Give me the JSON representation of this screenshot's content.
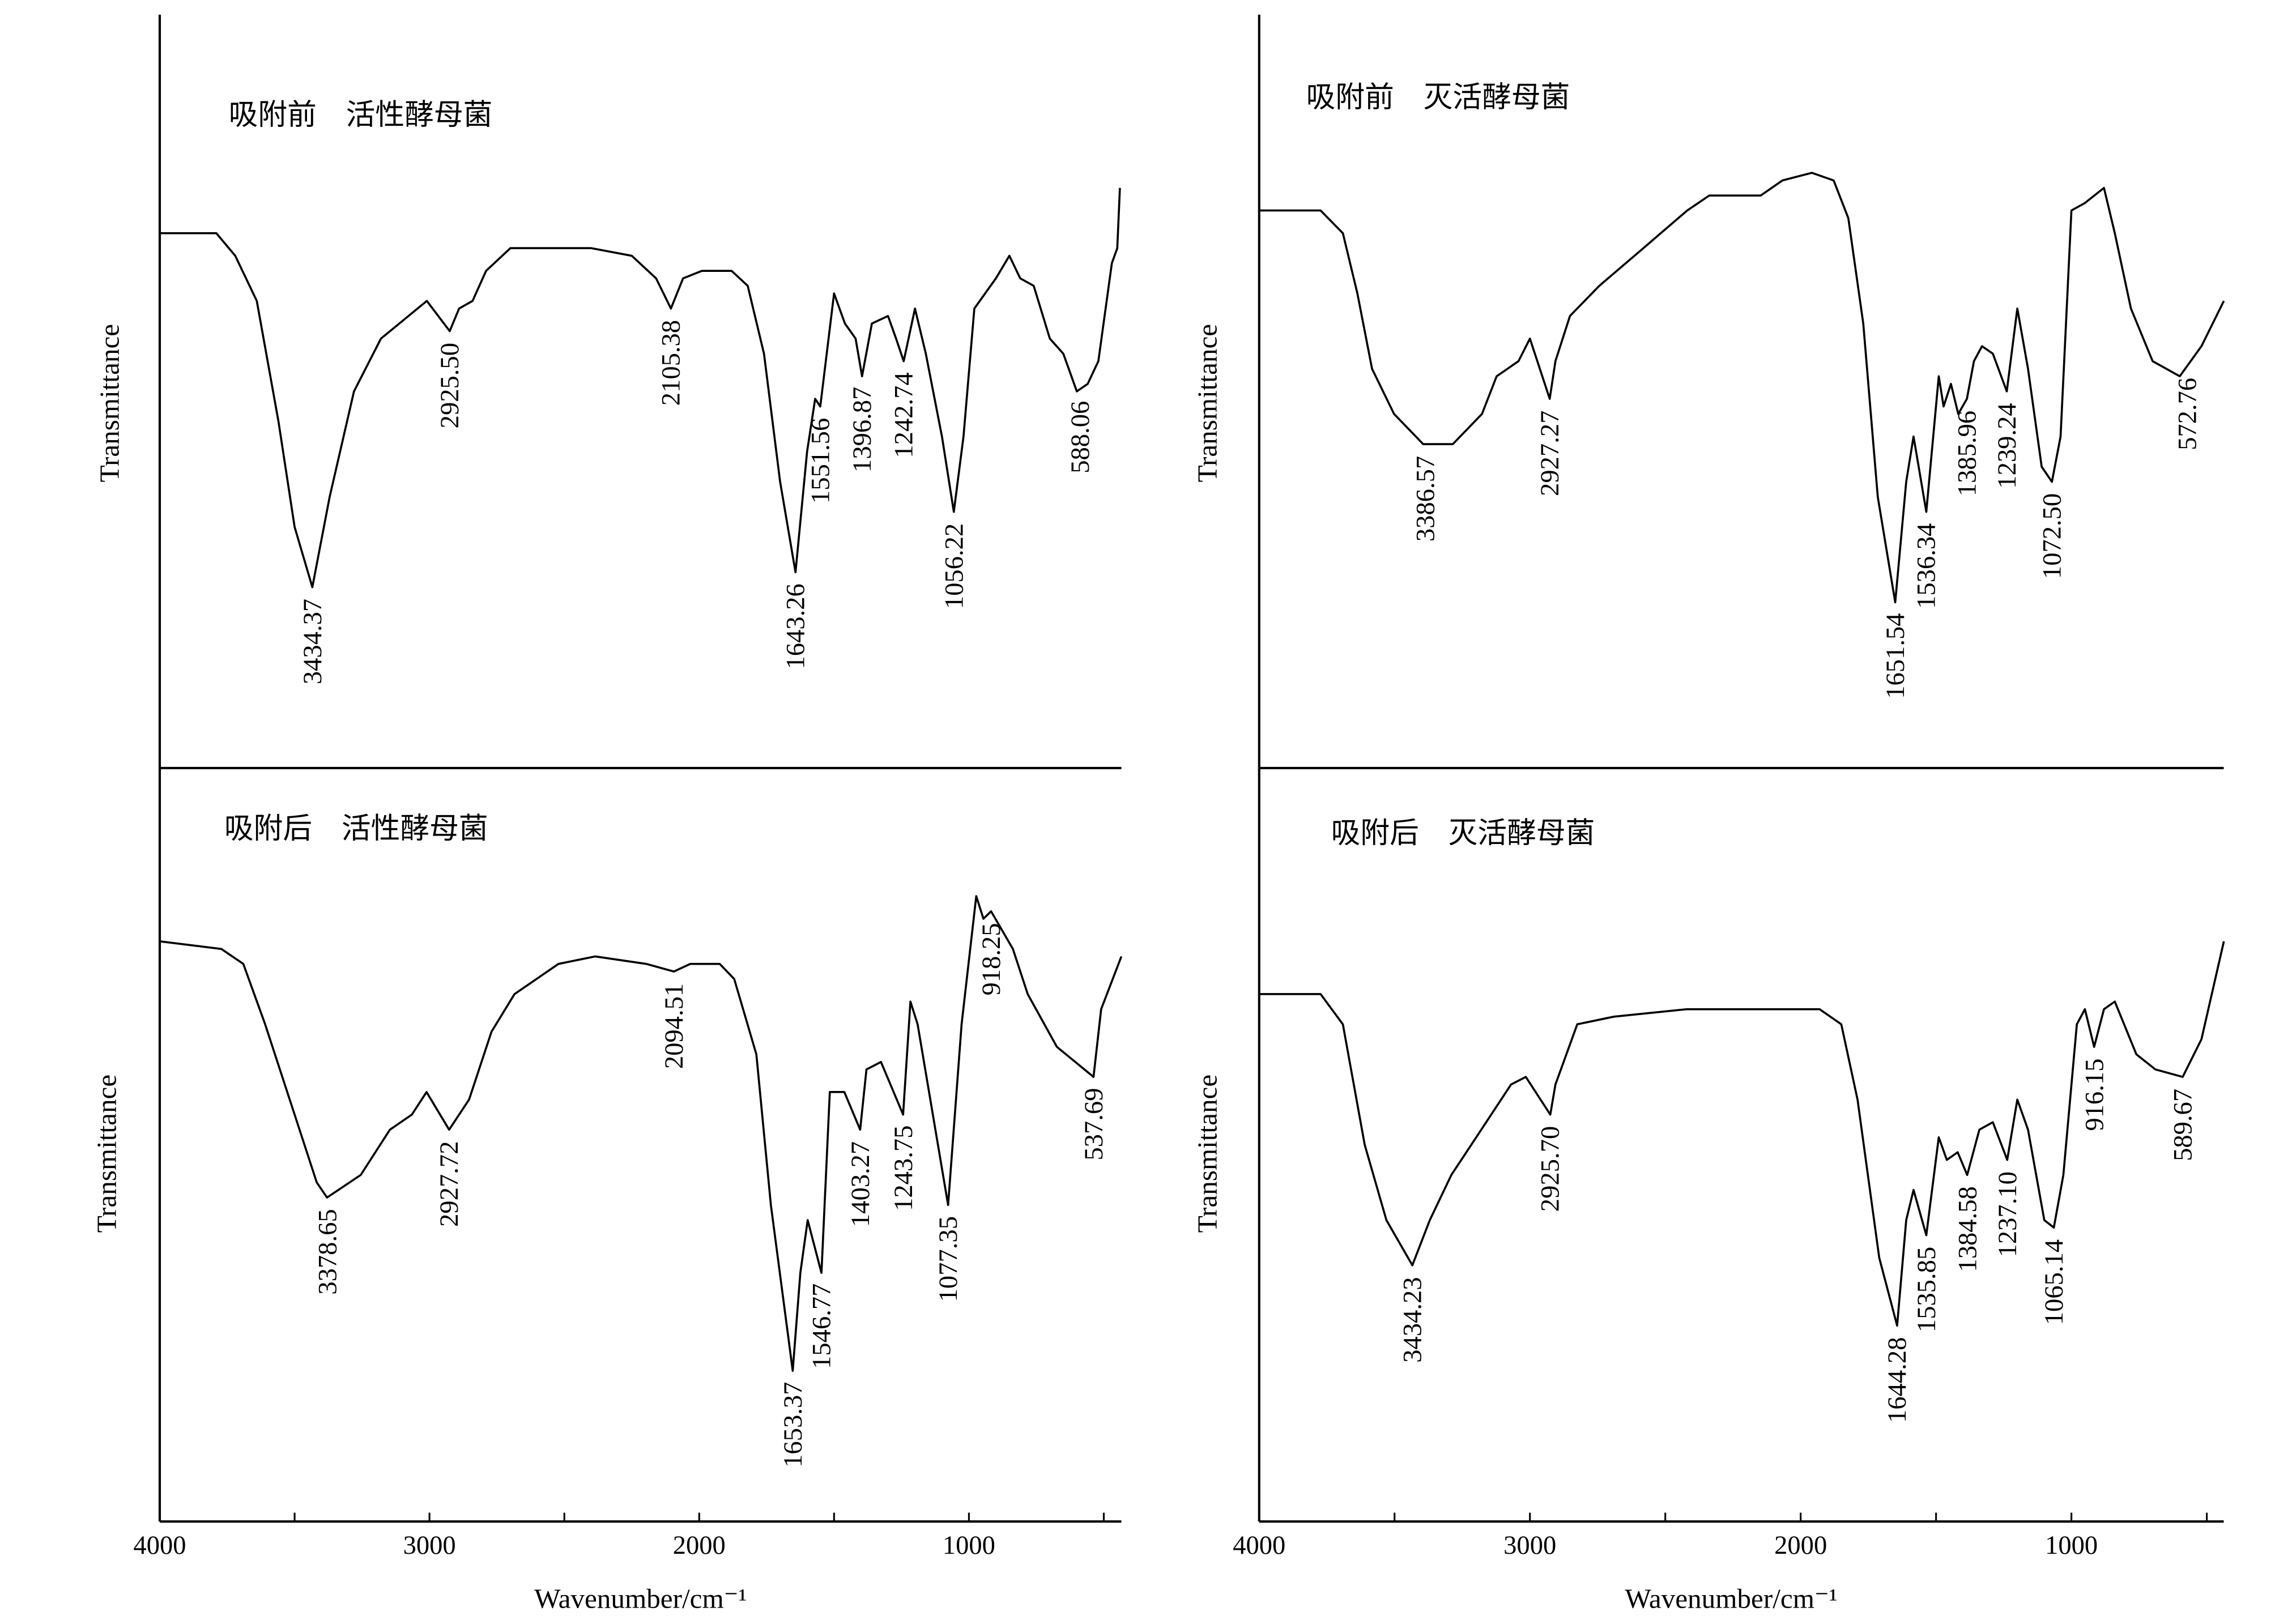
{
  "chart_data": {
    "type": "line",
    "xlabel": "Wavenumber/cm⁻¹",
    "ylabel": "Transmittance",
    "xlim": [
      4000,
      430
    ],
    "x_ticks": [
      "4000",
      "3000",
      "2000",
      "1000"
    ],
    "grid": false,
    "color": "#000000",
    "panels": [
      {
        "title": "吸附前　活性酵母菌",
        "ylabel": "Transmittance",
        "series": [
          [
            4000,
            71
          ],
          [
            3790,
            71
          ],
          [
            3720,
            68
          ],
          [
            3640,
            62
          ],
          [
            3560,
            46
          ],
          [
            3500,
            32
          ],
          [
            3434,
            24
          ],
          [
            3370,
            36
          ],
          [
            3280,
            50
          ],
          [
            3180,
            57
          ],
          [
            3010,
            62
          ],
          [
            2925,
            58
          ],
          [
            2890,
            61
          ],
          [
            2840,
            62
          ],
          [
            2790,
            66
          ],
          [
            2700,
            69
          ],
          [
            2400,
            69
          ],
          [
            2250,
            68
          ],
          [
            2160,
            65
          ],
          [
            2105,
            61
          ],
          [
            2060,
            65
          ],
          [
            1990,
            66
          ],
          [
            1880,
            66
          ],
          [
            1820,
            64
          ],
          [
            1760,
            55
          ],
          [
            1700,
            38
          ],
          [
            1643,
            26
          ],
          [
            1600,
            42
          ],
          [
            1570,
            49
          ],
          [
            1551,
            48
          ],
          [
            1500,
            63
          ],
          [
            1460,
            59
          ],
          [
            1420,
            57
          ],
          [
            1396,
            52
          ],
          [
            1360,
            59
          ],
          [
            1300,
            60
          ],
          [
            1270,
            57
          ],
          [
            1242,
            54
          ],
          [
            1200,
            61
          ],
          [
            1160,
            55
          ],
          [
            1100,
            44
          ],
          [
            1056,
            34
          ],
          [
            1020,
            44
          ],
          [
            980,
            61
          ],
          [
            900,
            65
          ],
          [
            850,
            68
          ],
          [
            810,
            65
          ],
          [
            760,
            64
          ],
          [
            700,
            57
          ],
          [
            650,
            55
          ],
          [
            600,
            50
          ],
          [
            560,
            51
          ],
          [
            520,
            54
          ],
          [
            470,
            67
          ],
          [
            450,
            69
          ],
          [
            440,
            77
          ]
        ],
        "peaks": [
          {
            "wn": 3434.37,
            "label": "3434.37"
          },
          {
            "wn": 2925.5,
            "label": "2925.50"
          },
          {
            "wn": 2105.38,
            "label": "2105.38"
          },
          {
            "wn": 1643.26,
            "label": "1643.26"
          },
          {
            "wn": 1551.56,
            "label": "1551.56"
          },
          {
            "wn": 1396.87,
            "label": "1396.87"
          },
          {
            "wn": 1242.74,
            "label": "1242.74"
          },
          {
            "wn": 1056.22,
            "label": "1056.22"
          },
          {
            "wn": 588.06,
            "label": "588.06"
          }
        ]
      },
      {
        "title": "吸附前　灭活酵母菌",
        "ylabel": "Transmittance",
        "series": [
          [
            4000,
            74
          ],
          [
            3773,
            74
          ],
          [
            3691,
            71
          ],
          [
            3637,
            63
          ],
          [
            3583,
            53
          ],
          [
            3502,
            47
          ],
          [
            3394,
            43
          ],
          [
            3285,
            43
          ],
          [
            3177,
            47
          ],
          [
            3123,
            52
          ],
          [
            3042,
            54
          ],
          [
            3000,
            57
          ],
          [
            2927,
            49
          ],
          [
            2906,
            54
          ],
          [
            2852,
            60
          ],
          [
            2744,
            64
          ],
          [
            2581,
            69
          ],
          [
            2419,
            74
          ],
          [
            2338,
            76
          ],
          [
            2148,
            76
          ],
          [
            2067,
            78
          ],
          [
            1959,
            79
          ],
          [
            1878,
            78
          ],
          [
            1824,
            73
          ],
          [
            1769,
            59
          ],
          [
            1715,
            36
          ],
          [
            1651,
            22
          ],
          [
            1610,
            38
          ],
          [
            1583,
            44
          ],
          [
            1536,
            34
          ],
          [
            1490,
            52
          ],
          [
            1472,
            48
          ],
          [
            1445,
            51
          ],
          [
            1418,
            47
          ],
          [
            1386,
            49
          ],
          [
            1360,
            54
          ],
          [
            1330,
            56
          ],
          [
            1290,
            55
          ],
          [
            1239,
            50
          ],
          [
            1200,
            61
          ],
          [
            1160,
            53
          ],
          [
            1110,
            40
          ],
          [
            1072,
            38
          ],
          [
            1040,
            44
          ],
          [
            1000,
            74
          ],
          [
            950,
            75
          ],
          [
            880,
            77
          ],
          [
            840,
            71
          ],
          [
            780,
            61
          ],
          [
            700,
            54
          ],
          [
            600,
            52
          ],
          [
            520,
            56
          ],
          [
            437,
            62
          ]
        ],
        "peaks": [
          {
            "wn": 3386.57,
            "label": "3386.57"
          },
          {
            "wn": 2927.27,
            "label": "2927.27"
          },
          {
            "wn": 1651.54,
            "label": "1651.54"
          },
          {
            "wn": 1536.34,
            "label": "1536.34"
          },
          {
            "wn": 1385.96,
            "label": "1385.96"
          },
          {
            "wn": 1239.24,
            "label": "1239.24"
          },
          {
            "wn": 1072.5,
            "label": "1072.50"
          },
          {
            "wn": 572.76,
            "label": "572.76"
          }
        ]
      },
      {
        "title": "吸附后　活性酵母菌",
        "ylabel": "Transmittance",
        "series": [
          [
            4000,
            77
          ],
          [
            3772,
            76
          ],
          [
            3690,
            74
          ],
          [
            3609,
            66
          ],
          [
            3500,
            54
          ],
          [
            3418,
            45
          ],
          [
            3380,
            43
          ],
          [
            3255,
            46
          ],
          [
            3147,
            52
          ],
          [
            3065,
            54
          ],
          [
            3011,
            57
          ],
          [
            2927,
            52
          ],
          [
            2853,
            56
          ],
          [
            2770,
            65
          ],
          [
            2685,
            70
          ],
          [
            2522,
            74
          ],
          [
            2386,
            75
          ],
          [
            2196,
            74
          ],
          [
            2094,
            73
          ],
          [
            2033,
            74
          ],
          [
            1924,
            74
          ],
          [
            1870,
            72
          ],
          [
            1788,
            62
          ],
          [
            1734,
            42
          ],
          [
            1653,
            20
          ],
          [
            1625,
            33
          ],
          [
            1598,
            40
          ],
          [
            1547,
            33
          ],
          [
            1516,
            57
          ],
          [
            1462,
            57
          ],
          [
            1403,
            52
          ],
          [
            1380,
            60
          ],
          [
            1326,
            61
          ],
          [
            1244,
            54
          ],
          [
            1217,
            69
          ],
          [
            1190,
            66
          ],
          [
            1077,
            42
          ],
          [
            1027,
            66
          ],
          [
            973,
            83
          ],
          [
            946,
            80
          ],
          [
            918,
            81
          ],
          [
            837,
            76
          ],
          [
            782,
            70
          ],
          [
            674,
            63
          ],
          [
            538,
            59
          ],
          [
            510,
            68
          ],
          [
            435,
            75
          ]
        ],
        "peaks": [
          {
            "wn": 3378.65,
            "label": "3378.65"
          },
          {
            "wn": 2927.72,
            "label": "2927.72"
          },
          {
            "wn": 2094.51,
            "label": "2094.51"
          },
          {
            "wn": 1653.37,
            "label": "1653.37"
          },
          {
            "wn": 1546.77,
            "label": "1546.77"
          },
          {
            "wn": 1403.27,
            "label": "1403.27"
          },
          {
            "wn": 1243.75,
            "label": "1243.75"
          },
          {
            "wn": 1077.35,
            "label": "1077.35"
          },
          {
            "wn": 918.25,
            "label": "918.25"
          },
          {
            "wn": 537.69,
            "label": "537.69"
          }
        ]
      },
      {
        "title": "吸附后　灭活酵母菌",
        "ylabel": "Transmittance",
        "series": [
          [
            4000,
            70
          ],
          [
            3773,
            70
          ],
          [
            3691,
            66
          ],
          [
            3610,
            50
          ],
          [
            3530,
            40
          ],
          [
            3434,
            34
          ],
          [
            3370,
            40
          ],
          [
            3290,
            46
          ],
          [
            3180,
            52
          ],
          [
            3070,
            58
          ],
          [
            3015,
            59
          ],
          [
            2925,
            54
          ],
          [
            2906,
            58
          ],
          [
            2825,
            66
          ],
          [
            2690,
            67
          ],
          [
            2420,
            68
          ],
          [
            2150,
            68
          ],
          [
            1930,
            68
          ],
          [
            1850,
            66
          ],
          [
            1790,
            56
          ],
          [
            1710,
            35
          ],
          [
            1644,
            26
          ],
          [
            1610,
            40
          ],
          [
            1583,
            44
          ],
          [
            1536,
            38
          ],
          [
            1490,
            51
          ],
          [
            1460,
            48
          ],
          [
            1420,
            49
          ],
          [
            1385,
            46
          ],
          [
            1340,
            52
          ],
          [
            1290,
            53
          ],
          [
            1237,
            48
          ],
          [
            1200,
            56
          ],
          [
            1160,
            52
          ],
          [
            1100,
            40
          ],
          [
            1065,
            39
          ],
          [
            1030,
            46
          ],
          [
            980,
            66
          ],
          [
            950,
            68
          ],
          [
            916,
            63
          ],
          [
            880,
            68
          ],
          [
            840,
            69
          ],
          [
            760,
            62
          ],
          [
            690,
            60
          ],
          [
            589,
            59
          ],
          [
            520,
            64
          ],
          [
            437,
            77
          ]
        ],
        "peaks": [
          {
            "wn": 3434.23,
            "label": "3434.23"
          },
          {
            "wn": 2925.7,
            "label": "2925.70"
          },
          {
            "wn": 1644.28,
            "label": "1644.28"
          },
          {
            "wn": 1535.85,
            "label": "1535.85"
          },
          {
            "wn": 1384.58,
            "label": "1384.58"
          },
          {
            "wn": 1237.1,
            "label": "1237.10"
          },
          {
            "wn": 1065.14,
            "label": "1065.14"
          },
          {
            "wn": 916.15,
            "label": "916.15"
          },
          {
            "wn": 589.67,
            "label": "589.67"
          }
        ]
      }
    ]
  }
}
